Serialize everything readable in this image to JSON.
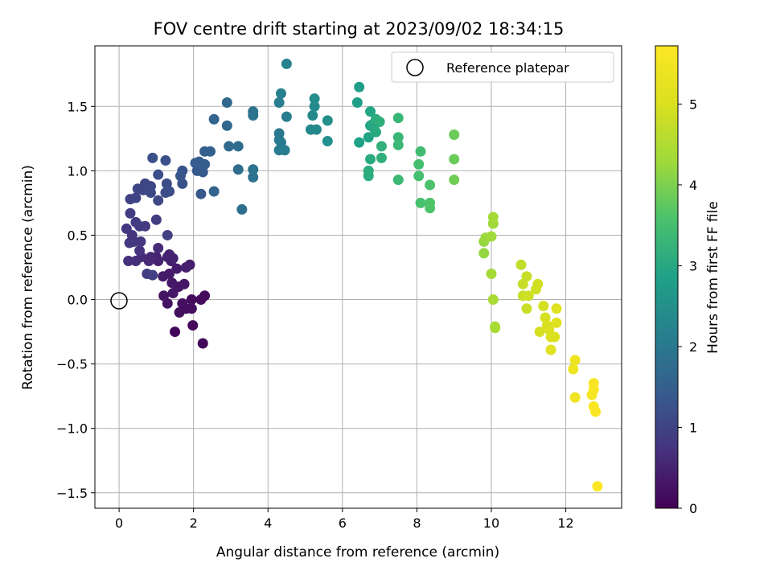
{
  "chart_data": {
    "type": "scatter",
    "title": "FOV centre drift starting at 2023/09/02 18:34:15",
    "xlabel": "Angular distance from reference (arcmin)",
    "ylabel": "Rotation from reference (arcmin)",
    "xlim": [
      -0.65,
      13.5
    ],
    "ylim": [
      -1.62,
      1.97
    ],
    "xticks": [
      0,
      2,
      4,
      6,
      8,
      10,
      12
    ],
    "yticks": [
      -1.5,
      -1.0,
      -0.5,
      0.0,
      0.5,
      1.0,
      1.5
    ],
    "xtick_labels": [
      "0",
      "2",
      "4",
      "6",
      "8",
      "10",
      "12"
    ],
    "ytick_labels": [
      "−1.5",
      "−1.0",
      "−0.5",
      "0.0",
      "0.5",
      "1.0",
      "1.5"
    ],
    "grid": true,
    "colormap": "viridis",
    "colorbar": {
      "label": "Hours from first FF file",
      "range": [
        0,
        5.72
      ],
      "ticks": [
        0,
        1,
        2,
        3,
        4,
        5
      ],
      "tick_labels": [
        "0",
        "1",
        "2",
        "3",
        "4",
        "5"
      ]
    },
    "legend": {
      "position": "top-right",
      "entries": [
        "Reference platepar"
      ]
    },
    "reference_point": {
      "x": 0,
      "y": 0
    },
    "points": [
      {
        "x": 1.5,
        "y": -0.25,
        "c": 0.1
      },
      {
        "x": 2.25,
        "y": -0.34,
        "c": 0.1
      },
      {
        "x": 1.98,
        "y": -0.2,
        "c": 0.12
      },
      {
        "x": 2.3,
        "y": 0.03,
        "c": 0.12
      },
      {
        "x": 2.2,
        "y": 0.0,
        "c": 0.15
      },
      {
        "x": 1.95,
        "y": 0.0,
        "c": 0.15
      },
      {
        "x": 1.8,
        "y": -0.07,
        "c": 0.18
      },
      {
        "x": 1.62,
        "y": -0.1,
        "c": 0.2
      },
      {
        "x": 1.95,
        "y": -0.07,
        "c": 0.2
      },
      {
        "x": 1.7,
        "y": -0.03,
        "c": 0.22
      },
      {
        "x": 1.3,
        "y": -0.03,
        "c": 0.25
      },
      {
        "x": 1.2,
        "y": 0.03,
        "c": 0.28
      },
      {
        "x": 1.45,
        "y": 0.05,
        "c": 0.3
      },
      {
        "x": 1.6,
        "y": 0.1,
        "c": 0.3
      },
      {
        "x": 1.75,
        "y": 0.12,
        "c": 0.32
      },
      {
        "x": 1.42,
        "y": 0.13,
        "c": 0.34
      },
      {
        "x": 1.18,
        "y": 0.18,
        "c": 0.36
      },
      {
        "x": 1.35,
        "y": 0.2,
        "c": 0.38
      },
      {
        "x": 1.55,
        "y": 0.24,
        "c": 0.4
      },
      {
        "x": 1.9,
        "y": 0.27,
        "c": 0.4
      },
      {
        "x": 1.8,
        "y": 0.25,
        "c": 0.42
      },
      {
        "x": 1.4,
        "y": 0.3,
        "c": 0.44
      },
      {
        "x": 1.05,
        "y": 0.3,
        "c": 0.46
      },
      {
        "x": 1.3,
        "y": 0.33,
        "c": 0.48
      },
      {
        "x": 1.45,
        "y": 0.32,
        "c": 0.5
      },
      {
        "x": 1.35,
        "y": 0.35,
        "c": 0.5
      },
      {
        "x": 1.0,
        "y": 0.33,
        "c": 0.52
      },
      {
        "x": 0.85,
        "y": 0.33,
        "c": 0.55
      },
      {
        "x": 0.8,
        "y": 0.3,
        "c": 0.58
      },
      {
        "x": 1.05,
        "y": 0.4,
        "c": 0.6
      },
      {
        "x": 0.6,
        "y": 0.33,
        "c": 0.62
      },
      {
        "x": 0.45,
        "y": 0.3,
        "c": 0.65
      },
      {
        "x": 0.25,
        "y": 0.3,
        "c": 0.7
      },
      {
        "x": 0.55,
        "y": 0.38,
        "c": 0.72
      },
      {
        "x": 0.4,
        "y": 0.45,
        "c": 0.75
      },
      {
        "x": 0.35,
        "y": 0.5,
        "c": 0.78
      },
      {
        "x": 0.58,
        "y": 0.45,
        "c": 0.8
      },
      {
        "x": 0.2,
        "y": 0.55,
        "c": 0.8
      },
      {
        "x": 0.28,
        "y": 0.44,
        "c": 0.82
      },
      {
        "x": 0.45,
        "y": 0.6,
        "c": 0.85
      },
      {
        "x": 0.7,
        "y": 0.57,
        "c": 0.85
      },
      {
        "x": 0.55,
        "y": 0.57,
        "c": 0.88
      },
      {
        "x": 0.3,
        "y": 0.67,
        "c": 0.9
      },
      {
        "x": 1.0,
        "y": 0.62,
        "c": 0.9
      },
      {
        "x": 0.75,
        "y": 0.2,
        "c": 0.92
      },
      {
        "x": 0.9,
        "y": 0.19,
        "c": 0.95
      },
      {
        "x": 1.3,
        "y": 0.5,
        "c": 0.95
      },
      {
        "x": 0.3,
        "y": 0.78,
        "c": 0.98
      },
      {
        "x": 0.45,
        "y": 0.79,
        "c": 1.0
      },
      {
        "x": 0.5,
        "y": 0.86,
        "c": 1.02
      },
      {
        "x": 0.65,
        "y": 0.85,
        "c": 1.05
      },
      {
        "x": 0.7,
        "y": 0.9,
        "c": 1.05
      },
      {
        "x": 0.85,
        "y": 0.88,
        "c": 1.08
      },
      {
        "x": 0.85,
        "y": 0.83,
        "c": 1.1
      },
      {
        "x": 1.05,
        "y": 0.77,
        "c": 1.12
      },
      {
        "x": 1.25,
        "y": 0.83,
        "c": 1.15
      },
      {
        "x": 1.35,
        "y": 0.84,
        "c": 1.15
      },
      {
        "x": 1.28,
        "y": 0.9,
        "c": 1.18
      },
      {
        "x": 1.05,
        "y": 0.97,
        "c": 1.2
      },
      {
        "x": 0.9,
        "y": 1.1,
        "c": 1.22
      },
      {
        "x": 1.25,
        "y": 1.08,
        "c": 1.25
      },
      {
        "x": 1.7,
        "y": 0.9,
        "c": 1.28
      },
      {
        "x": 1.7,
        "y": 1.0,
        "c": 1.3
      },
      {
        "x": 1.65,
        "y": 0.96,
        "c": 1.32
      },
      {
        "x": 2.2,
        "y": 0.82,
        "c": 1.35
      },
      {
        "x": 2.1,
        "y": 1.0,
        "c": 1.38
      },
      {
        "x": 2.25,
        "y": 0.99,
        "c": 1.4
      },
      {
        "x": 2.15,
        "y": 1.07,
        "c": 1.42
      },
      {
        "x": 2.05,
        "y": 1.06,
        "c": 1.45
      },
      {
        "x": 2.3,
        "y": 1.05,
        "c": 1.48
      },
      {
        "x": 2.3,
        "y": 1.15,
        "c": 1.5
      },
      {
        "x": 2.45,
        "y": 1.15,
        "c": 1.52
      },
      {
        "x": 2.55,
        "y": 0.84,
        "c": 1.55
      },
      {
        "x": 2.55,
        "y": 1.4,
        "c": 1.6
      },
      {
        "x": 2.9,
        "y": 1.35,
        "c": 1.65
      },
      {
        "x": 2.9,
        "y": 1.53,
        "c": 1.7
      },
      {
        "x": 2.95,
        "y": 1.19,
        "c": 1.72
      },
      {
        "x": 3.2,
        "y": 1.19,
        "c": 1.75
      },
      {
        "x": 3.2,
        "y": 1.01,
        "c": 1.78
      },
      {
        "x": 3.3,
        "y": 0.7,
        "c": 1.8
      },
      {
        "x": 3.6,
        "y": 0.95,
        "c": 1.85
      },
      {
        "x": 3.6,
        "y": 1.01,
        "c": 1.88
      },
      {
        "x": 3.6,
        "y": 1.43,
        "c": 1.9
      },
      {
        "x": 3.6,
        "y": 1.46,
        "c": 1.92
      },
      {
        "x": 4.3,
        "y": 1.24,
        "c": 2.0
      },
      {
        "x": 4.3,
        "y": 1.29,
        "c": 2.0
      },
      {
        "x": 4.3,
        "y": 1.16,
        "c": 2.05
      },
      {
        "x": 4.35,
        "y": 1.22,
        "c": 2.05
      },
      {
        "x": 4.45,
        "y": 1.16,
        "c": 2.1
      },
      {
        "x": 4.3,
        "y": 1.53,
        "c": 2.1
      },
      {
        "x": 4.35,
        "y": 1.6,
        "c": 2.15
      },
      {
        "x": 4.5,
        "y": 1.42,
        "c": 2.15
      },
      {
        "x": 4.5,
        "y": 1.83,
        "c": 2.2
      },
      {
        "x": 5.15,
        "y": 1.32,
        "c": 2.3
      },
      {
        "x": 5.2,
        "y": 1.43,
        "c": 2.35
      },
      {
        "x": 5.3,
        "y": 1.32,
        "c": 2.35
      },
      {
        "x": 5.25,
        "y": 1.5,
        "c": 2.4
      },
      {
        "x": 5.25,
        "y": 1.56,
        "c": 2.42
      },
      {
        "x": 5.6,
        "y": 1.39,
        "c": 2.45
      },
      {
        "x": 5.6,
        "y": 1.23,
        "c": 2.5
      },
      {
        "x": 6.4,
        "y": 1.53,
        "c": 2.8
      },
      {
        "x": 6.45,
        "y": 1.65,
        "c": 2.8
      },
      {
        "x": 6.45,
        "y": 1.22,
        "c": 2.85
      },
      {
        "x": 6.7,
        "y": 1.26,
        "c": 2.9
      },
      {
        "x": 6.75,
        "y": 1.46,
        "c": 2.95
      },
      {
        "x": 6.75,
        "y": 1.35,
        "c": 2.95
      },
      {
        "x": 6.8,
        "y": 1.36,
        "c": 3.0
      },
      {
        "x": 6.85,
        "y": 1.33,
        "c": 3.0
      },
      {
        "x": 6.9,
        "y": 1.3,
        "c": 3.05
      },
      {
        "x": 6.75,
        "y": 1.09,
        "c": 3.05
      },
      {
        "x": 6.7,
        "y": 0.96,
        "c": 3.1
      },
      {
        "x": 6.7,
        "y": 1.0,
        "c": 3.1
      },
      {
        "x": 6.9,
        "y": 1.4,
        "c": 3.1
      },
      {
        "x": 7.0,
        "y": 1.38,
        "c": 3.15
      },
      {
        "x": 7.05,
        "y": 1.1,
        "c": 3.15
      },
      {
        "x": 7.05,
        "y": 1.19,
        "c": 3.2
      },
      {
        "x": 7.5,
        "y": 1.41,
        "c": 3.3
      },
      {
        "x": 7.5,
        "y": 1.26,
        "c": 3.3
      },
      {
        "x": 7.5,
        "y": 1.2,
        "c": 3.35
      },
      {
        "x": 7.5,
        "y": 0.93,
        "c": 3.35
      },
      {
        "x": 8.1,
        "y": 1.15,
        "c": 3.45
      },
      {
        "x": 8.05,
        "y": 1.05,
        "c": 3.5
      },
      {
        "x": 8.05,
        "y": 0.96,
        "c": 3.5
      },
      {
        "x": 8.1,
        "y": 0.75,
        "c": 3.55
      },
      {
        "x": 8.35,
        "y": 0.89,
        "c": 3.6
      },
      {
        "x": 8.35,
        "y": 0.75,
        "c": 3.6
      },
      {
        "x": 8.35,
        "y": 0.71,
        "c": 3.62
      },
      {
        "x": 9.0,
        "y": 1.28,
        "c": 3.85
      },
      {
        "x": 9.0,
        "y": 1.09,
        "c": 3.85
      },
      {
        "x": 9.0,
        "y": 0.93,
        "c": 3.9
      },
      {
        "x": 9.8,
        "y": 0.45,
        "c": 4.2
      },
      {
        "x": 9.8,
        "y": 0.36,
        "c": 4.2
      },
      {
        "x": 9.85,
        "y": 0.48,
        "c": 4.25
      },
      {
        "x": 10.0,
        "y": 0.49,
        "c": 4.3
      },
      {
        "x": 10.05,
        "y": 0.59,
        "c": 4.3
      },
      {
        "x": 10.05,
        "y": 0.64,
        "c": 4.35
      },
      {
        "x": 10.0,
        "y": 0.2,
        "c": 4.35
      },
      {
        "x": 10.05,
        "y": 0.0,
        "c": 4.4
      },
      {
        "x": 10.1,
        "y": -0.21,
        "c": 4.4
      },
      {
        "x": 10.1,
        "y": -0.22,
        "c": 4.42
      },
      {
        "x": 10.8,
        "y": 0.27,
        "c": 4.7
      },
      {
        "x": 10.85,
        "y": 0.12,
        "c": 4.75
      },
      {
        "x": 10.95,
        "y": 0.18,
        "c": 4.75
      },
      {
        "x": 10.85,
        "y": 0.03,
        "c": 4.8
      },
      {
        "x": 10.95,
        "y": -0.07,
        "c": 4.8
      },
      {
        "x": 11.0,
        "y": 0.03,
        "c": 4.85
      },
      {
        "x": 11.2,
        "y": 0.08,
        "c": 4.85
      },
      {
        "x": 11.25,
        "y": 0.12,
        "c": 4.9
      },
      {
        "x": 11.4,
        "y": -0.05,
        "c": 4.9
      },
      {
        "x": 11.3,
        "y": -0.25,
        "c": 4.95
      },
      {
        "x": 11.45,
        "y": -0.14,
        "c": 4.95
      },
      {
        "x": 11.5,
        "y": -0.2,
        "c": 5.0
      },
      {
        "x": 11.55,
        "y": -0.23,
        "c": 5.0
      },
      {
        "x": 11.6,
        "y": -0.29,
        "c": 5.05
      },
      {
        "x": 11.7,
        "y": -0.29,
        "c": 5.05
      },
      {
        "x": 11.6,
        "y": -0.39,
        "c": 5.1
      },
      {
        "x": 11.75,
        "y": -0.18,
        "c": 5.1
      },
      {
        "x": 11.75,
        "y": -0.07,
        "c": 5.1
      },
      {
        "x": 12.25,
        "y": -0.47,
        "c": 5.4
      },
      {
        "x": 12.2,
        "y": -0.54,
        "c": 5.4
      },
      {
        "x": 12.25,
        "y": -0.76,
        "c": 5.45
      },
      {
        "x": 12.7,
        "y": -0.74,
        "c": 5.6
      },
      {
        "x": 12.75,
        "y": -0.7,
        "c": 5.6
      },
      {
        "x": 12.75,
        "y": -0.65,
        "c": 5.62
      },
      {
        "x": 12.75,
        "y": -0.83,
        "c": 5.65
      },
      {
        "x": 12.8,
        "y": -0.87,
        "c": 5.65
      },
      {
        "x": 12.85,
        "y": -1.45,
        "c": 5.72
      }
    ]
  }
}
